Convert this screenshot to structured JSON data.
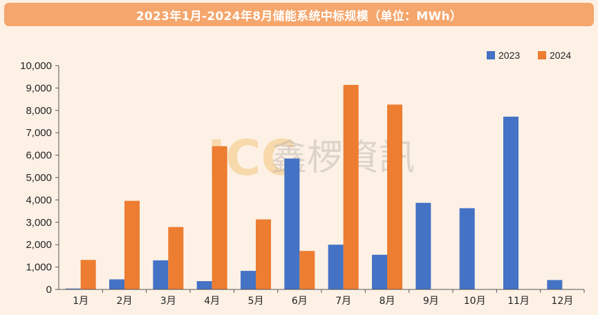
{
  "title": "2023年1月-2024年8月储能系统中标规模（单位：MWh）",
  "watermark": {
    "latin": "ICC",
    "cjk": "鑫椤資訊"
  },
  "colors": {
    "series_2023": "#4472c4",
    "series_2024": "#ed7d31",
    "title_bg": "#f5a66c",
    "background": "#fdf1e6"
  },
  "chart_data": {
    "type": "bar",
    "title": "2023年1月-2024年8月储能系统中标规模（单位：MWh）",
    "categories": [
      "1月",
      "2月",
      "3月",
      "4月",
      "5月",
      "6月",
      "7月",
      "8月",
      "9月",
      "10月",
      "11月",
      "12月"
    ],
    "series": [
      {
        "name": "2023",
        "values": [
          40,
          450,
          1300,
          370,
          830,
          5850,
          2000,
          1550,
          3870,
          3630,
          7720,
          420
        ]
      },
      {
        "name": "2024",
        "values": [
          1320,
          3960,
          2790,
          6400,
          3130,
          1720,
          9140,
          8260,
          null,
          null,
          null,
          null
        ]
      }
    ],
    "ylim": [
      0,
      10000
    ],
    "yticks": [
      0,
      1000,
      2000,
      3000,
      4000,
      5000,
      6000,
      7000,
      8000,
      9000,
      10000
    ],
    "ytick_labels": [
      "0",
      "1,000",
      "2,000",
      "3,000",
      "4,000",
      "5,000",
      "6,000",
      "7,000",
      "8,000",
      "9,000",
      "10,000"
    ],
    "legend_position": "top-right",
    "grid": false
  }
}
